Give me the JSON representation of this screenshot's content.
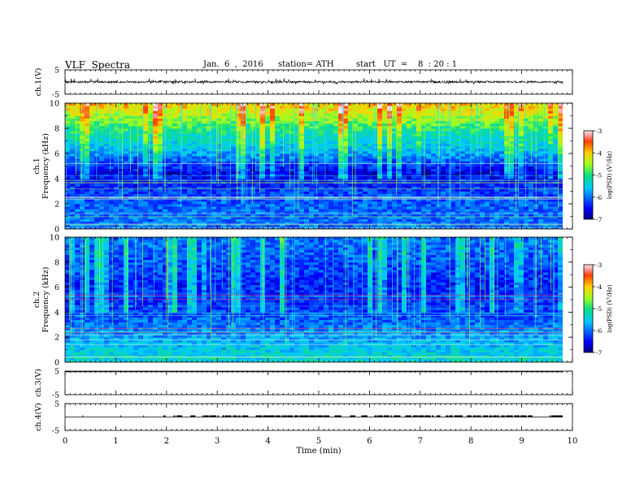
{
  "header": {
    "title": "VLF  Spectra",
    "date": "Jan.  6  ,  2016",
    "station": "station= ATH",
    "start": "start   UT  =    8  : 20 : 1"
  },
  "chart_data": {
    "type": "multi-panel",
    "x_axis": {
      "label": "Time  (min)",
      "range": [
        0,
        10
      ],
      "ticks": [
        0,
        1,
        2,
        3,
        4,
        5,
        6,
        7,
        8,
        9,
        10
      ],
      "data_extent": [
        0,
        9.8
      ]
    },
    "panels": [
      {
        "id": "ch1-waveform",
        "type": "line",
        "ylabel": "ch.1(V)",
        "yrange": [
          -5,
          5
        ],
        "ticks": [
          -5,
          5
        ],
        "description_values": {
          "baseline": 0,
          "amplitude_band": [
            -0.6,
            0.8
          ],
          "spike_extent": [
            -1.0,
            1.6
          ]
        }
      },
      {
        "id": "ch1-spectrogram",
        "type": "heatmap",
        "ylabel": "Frequency  (kHz)",
        "channel_label": "ch.1",
        "yrange": [
          0,
          10
        ],
        "ticks": [
          0,
          2,
          4,
          6,
          8,
          10
        ],
        "colorbar": {
          "label": "log(PSD) (V²/Hz)",
          "range": [
            -7,
            -3
          ],
          "ticks": [
            -3,
            -4,
            -5,
            -6,
            -7
          ]
        },
        "profile_log_psd": [
          {
            "freq_khz": 0.5,
            "value": -6.0
          },
          {
            "freq_khz": 2.5,
            "value": -6.1
          },
          {
            "freq_khz": 4.5,
            "value": -6.6
          },
          {
            "freq_khz": 6.3,
            "value": -5.6
          },
          {
            "freq_khz": 7.5,
            "value": -5.2
          },
          {
            "freq_khz": 8.5,
            "value": -4.7
          },
          {
            "freq_khz": 9.8,
            "value": -4.0
          }
        ]
      },
      {
        "id": "ch2-spectrogram",
        "type": "heatmap",
        "ylabel": "Frequency  (kHz)",
        "channel_label": "ch.2",
        "yrange": [
          0,
          10
        ],
        "ticks": [
          0,
          2,
          4,
          6,
          8,
          10
        ],
        "colorbar": {
          "label": "log(PSD) (V²/Hz)",
          "range": [
            -7,
            -3
          ],
          "ticks": [
            -3,
            -4,
            -5,
            -6,
            -7
          ]
        },
        "profile_log_psd": [
          {
            "freq_khz": 0.5,
            "value": -5.4
          },
          {
            "freq_khz": 2.5,
            "value": -5.9
          },
          {
            "freq_khz": 4.5,
            "value": -6.3
          },
          {
            "freq_khz": 6.3,
            "value": -6.4
          },
          {
            "freq_khz": 7.5,
            "value": -6.2
          },
          {
            "freq_khz": 8.5,
            "value": -6.1
          },
          {
            "freq_khz": 9.8,
            "value": -6.0
          }
        ]
      },
      {
        "id": "ch3-waveform",
        "type": "line",
        "ylabel": "ch.3(V)",
        "yrange": [
          -5,
          5
        ],
        "ticks": [
          -5,
          5
        ],
        "description_values": {
          "baseline": 4.7
        }
      },
      {
        "id": "ch4-waveform",
        "type": "line",
        "ylabel": "ch.4(V)",
        "yrange": [
          -5,
          5
        ],
        "ticks": [
          -5,
          5
        ],
        "description_values": {
          "baseline": 0,
          "pulse_level": 0.6,
          "pulse_start_min": 1.85
        }
      }
    ]
  }
}
